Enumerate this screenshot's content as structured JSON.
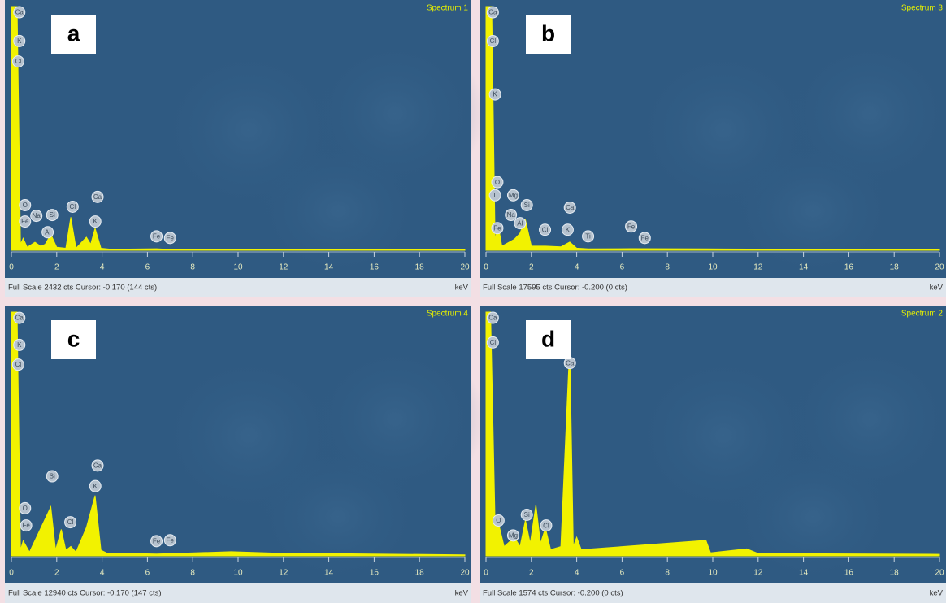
{
  "chart_data": [
    {
      "type": "spectrum",
      "panel_label": "a",
      "title": "Spectrum 1",
      "footer": "Full Scale 2432 cts Cursor: -0.170  (144 cts)",
      "xlabel": "keV",
      "x": [
        0,
        0.25,
        0.4,
        0.52,
        0.7,
        1.04,
        1.3,
        1.49,
        1.74,
        2.0,
        2.4,
        2.62,
        2.85,
        3.31,
        3.5,
        3.69,
        3.95,
        4.4,
        6.4,
        7.0,
        20
      ],
      "values": [
        2432,
        2432,
        60,
        120,
        30,
        80,
        40,
        60,
        160,
        30,
        20,
        330,
        20,
        130,
        60,
        220,
        20,
        10,
        15,
        8,
        5
      ],
      "color": "#f2f200",
      "xlim": [
        0,
        20
      ],
      "xticks": [
        0,
        2,
        4,
        6,
        8,
        10,
        12,
        14,
        16,
        18,
        20
      ],
      "ylim": [
        0,
        2432
      ],
      "annotations": [
        {
          "text": "Ca",
          "x": 0.35,
          "y": 2375
        },
        {
          "text": "K",
          "x": 0.35,
          "y": 2088
        },
        {
          "text": "Cl",
          "x": 0.3,
          "y": 1884
        },
        {
          "text": "O",
          "x": 0.6,
          "y": 450
        },
        {
          "text": "Fe",
          "x": 0.6,
          "y": 287
        },
        {
          "text": "Na",
          "x": 1.1,
          "y": 344
        },
        {
          "text": "Si",
          "x": 1.8,
          "y": 352
        },
        {
          "text": "Al",
          "x": 1.6,
          "y": 180
        },
        {
          "text": "Cl",
          "x": 2.7,
          "y": 434
        },
        {
          "text": "Ca",
          "x": 3.8,
          "y": 532
        },
        {
          "text": "K",
          "x": 3.7,
          "y": 287
        },
        {
          "text": "Fe",
          "x": 6.4,
          "y": 139
        },
        {
          "text": "Fe",
          "x": 7.0,
          "y": 123
        }
      ]
    },
    {
      "type": "spectrum",
      "panel_label": "b",
      "title": "Spectrum 3",
      "footer": "Full Scale 17595 cts Cursor: -0.200  (0 cts)",
      "xlabel": "keV",
      "x": [
        0,
        0.25,
        0.4,
        0.52,
        0.7,
        1.25,
        1.49,
        1.74,
        2.0,
        2.62,
        3.31,
        3.69,
        4.0,
        4.51,
        6.4,
        9.7,
        20
      ],
      "values": [
        17595,
        17595,
        600,
        2000,
        300,
        800,
        1200,
        2200,
        300,
        300,
        250,
        600,
        150,
        100,
        120,
        100,
        30
      ],
      "color": "#f2f200",
      "xlim": [
        0,
        20
      ],
      "xticks": [
        0,
        2,
        4,
        6,
        8,
        10,
        12,
        14,
        16,
        18,
        20
      ],
      "ylim": [
        0,
        17595
      ],
      "annotations": [
        {
          "text": "Ca",
          "x": 0.3,
          "y": 17180
        },
        {
          "text": "Cl",
          "x": 0.3,
          "y": 15100
        },
        {
          "text": "K",
          "x": 0.4,
          "y": 11256
        },
        {
          "text": "O",
          "x": 0.5,
          "y": 4917
        },
        {
          "text": "Ti",
          "x": 0.4,
          "y": 3970
        },
        {
          "text": "Fe",
          "x": 0.5,
          "y": 1600
        },
        {
          "text": "Mg",
          "x": 1.2,
          "y": 3970
        },
        {
          "text": "Na",
          "x": 1.1,
          "y": 2548
        },
        {
          "text": "Al",
          "x": 1.5,
          "y": 1955
        },
        {
          "text": "Si",
          "x": 1.8,
          "y": 3258
        },
        {
          "text": "Cl",
          "x": 2.6,
          "y": 1481
        },
        {
          "text": "Ca",
          "x": 3.7,
          "y": 3080
        },
        {
          "text": "K",
          "x": 3.6,
          "y": 1481
        },
        {
          "text": "Ti",
          "x": 4.5,
          "y": 1007
        },
        {
          "text": "Fe",
          "x": 6.4,
          "y": 1718
        },
        {
          "text": "Fe",
          "x": 7.0,
          "y": 889
        }
      ]
    },
    {
      "type": "spectrum",
      "panel_label": "c",
      "title": "Spectrum 4",
      "footer": "Full Scale 12940 cts Cursor: -0.170  (147 cts)",
      "xlabel": "keV",
      "x": [
        0,
        0.25,
        0.4,
        0.52,
        0.8,
        1.74,
        1.95,
        2.2,
        2.4,
        2.62,
        2.85,
        3.31,
        3.69,
        3.95,
        4.2,
        6.4,
        9.7,
        11.5,
        20
      ],
      "values": [
        12940,
        12940,
        300,
        800,
        200,
        2600,
        300,
        1400,
        300,
        500,
        200,
        1500,
        3200,
        300,
        150,
        100,
        220,
        150,
        50
      ],
      "color": "#f2f200",
      "xlim": [
        0,
        20
      ],
      "xticks": [
        0,
        2,
        4,
        6,
        8,
        10,
        12,
        14,
        16,
        18,
        20
      ],
      "ylim": [
        0,
        12940
      ],
      "annotations": [
        {
          "text": "Ca",
          "x": 0.35,
          "y": 12634
        },
        {
          "text": "K",
          "x": 0.35,
          "y": 11197
        },
        {
          "text": "Cl",
          "x": 0.3,
          "y": 10152
        },
        {
          "text": "O",
          "x": 0.6,
          "y": 2527
        },
        {
          "text": "Fe",
          "x": 0.65,
          "y": 1612
        },
        {
          "text": "Si",
          "x": 1.8,
          "y": 4226
        },
        {
          "text": "Cl",
          "x": 2.6,
          "y": 1786
        },
        {
          "text": "Ca",
          "x": 3.8,
          "y": 4793
        },
        {
          "text": "K",
          "x": 3.7,
          "y": 3703
        },
        {
          "text": "Fe",
          "x": 6.4,
          "y": 784
        },
        {
          "text": "Fe",
          "x": 7.0,
          "y": 828
        }
      ]
    },
    {
      "type": "spectrum",
      "panel_label": "d",
      "title": "Spectrum 2",
      "footer": "Full Scale 1574 cts Cursor: -0.200  (0 cts)",
      "xlabel": "keV",
      "x": [
        0,
        0.2,
        0.4,
        0.52,
        0.8,
        1.25,
        1.5,
        1.74,
        1.95,
        2.2,
        2.4,
        2.62,
        2.85,
        3.3,
        3.69,
        3.85,
        4.0,
        4.2,
        9.7,
        9.9,
        11.5,
        12,
        20
      ],
      "values": [
        1574,
        1574,
        200,
        230,
        60,
        120,
        60,
        230,
        80,
        330,
        80,
        180,
        40,
        60,
        1360,
        60,
        120,
        40,
        100,
        20,
        45,
        15,
        10
      ],
      "color": "#f2f200",
      "xlim": [
        0,
        20
      ],
      "xticks": [
        0,
        2,
        4,
        6,
        8,
        10,
        12,
        14,
        16,
        18,
        20
      ],
      "ylim": [
        0,
        1574
      ],
      "annotations": [
        {
          "text": "Ca",
          "x": 0.3,
          "y": 1537
        },
        {
          "text": "Cl",
          "x": 0.3,
          "y": 1378
        },
        {
          "text": "Ca",
          "x": 3.7,
          "y": 1245
        },
        {
          "text": "O",
          "x": 0.55,
          "y": 228
        },
        {
          "text": "Mg",
          "x": 1.2,
          "y": 132
        },
        {
          "text": "Si",
          "x": 1.8,
          "y": 265
        },
        {
          "text": "Cl",
          "x": 2.65,
          "y": 196
        }
      ]
    }
  ]
}
